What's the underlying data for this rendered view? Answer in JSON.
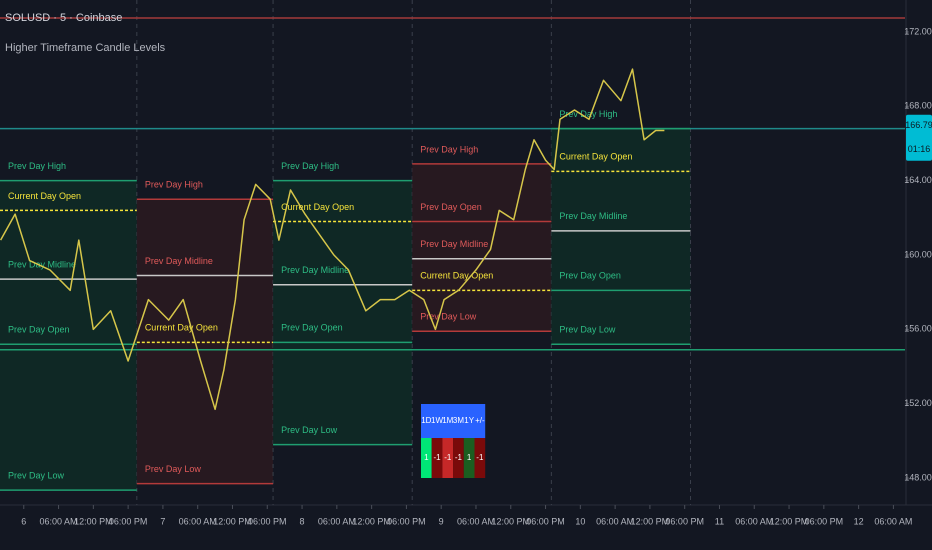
{
  "chart_data": {
    "type": "line",
    "title": "SOLUSD · 5 · Coinbase",
    "subtitle": "Higher Timeframe Candle Levels",
    "x": [
      -4,
      -1.5,
      1,
      4.5,
      8,
      9.5,
      12,
      15,
      18,
      21.5,
      25,
      27.5,
      30.5,
      33,
      34.5,
      36.5,
      38,
      40,
      42.5,
      44,
      46,
      48.5,
      51,
      53.5,
      56,
      59,
      61.5,
      64,
      66.5,
      69,
      71,
      72.5,
      75,
      78,
      80.5,
      82,
      84.5,
      86.5,
      88,
      90,
      91.5,
      92.5,
      95,
      97.5,
      100,
      103,
      105,
      107,
      109,
      110.5
    ],
    "series": [
      {
        "color": "#d6c64a",
        "values": [
          160.8,
          162.2,
          159.7,
          159.2,
          158.1,
          160.8,
          156,
          157,
          154.3,
          157.6,
          156.5,
          157.6,
          154.3,
          151.7,
          153.8,
          157.6,
          161.9,
          163.8,
          163,
          160.8,
          163.5,
          162.2,
          161.1,
          160,
          159.2,
          157,
          157.6,
          157.6,
          158.1,
          157.6,
          156,
          157.6,
          158.1,
          159.2,
          160.3,
          162.4,
          161.9,
          164.6,
          166.2,
          165.1,
          164.6,
          167.3,
          167.8,
          167.3,
          169.4,
          168.3,
          170,
          166.2,
          166.7,
          166.7
        ]
      }
    ],
    "xlim": [
      -4.1,
      152
    ],
    "xticks": [
      {
        "value": 0,
        "label": "6"
      },
      {
        "value": 6,
        "label": "06:00 AM"
      },
      {
        "value": 12,
        "label": "12:00 PM"
      },
      {
        "value": 18,
        "label": "06:00 PM"
      },
      {
        "value": 24,
        "label": "7"
      },
      {
        "value": 30,
        "label": "06:00 AM"
      },
      {
        "value": 36,
        "label": "12:00 PM"
      },
      {
        "value": 42,
        "label": "06:00 PM"
      },
      {
        "value": 48,
        "label": "8"
      },
      {
        "value": 54,
        "label": "06:00 AM"
      },
      {
        "value": 60,
        "label": "12:00 PM"
      },
      {
        "value": 66,
        "label": "06:00 PM"
      },
      {
        "value": 72,
        "label": "9"
      },
      {
        "value": 78,
        "label": "06:00 AM"
      },
      {
        "value": 84,
        "label": "12:00 PM"
      },
      {
        "value": 90,
        "label": "06:00 PM"
      },
      {
        "value": 96,
        "label": "10"
      },
      {
        "value": 102,
        "label": "06:00 AM"
      },
      {
        "value": 108,
        "label": "12:00 PM"
      },
      {
        "value": 114,
        "label": "06:00 PM"
      },
      {
        "value": 120,
        "label": "11"
      },
      {
        "value": 126,
        "label": "06:00 AM"
      },
      {
        "value": 132,
        "label": "12:00 PM"
      },
      {
        "value": 138,
        "label": "06:00 PM"
      },
      {
        "value": 144,
        "label": "12"
      },
      {
        "value": 150,
        "label": "06:00 AM"
      }
    ],
    "ylim": [
      146.55,
      173.72
    ],
    "yticks": [
      {
        "value": 148,
        "label": "148.00"
      },
      {
        "value": 152,
        "label": "152.00"
      },
      {
        "value": 156,
        "label": "156.00"
      },
      {
        "value": 160,
        "label": "160.00"
      },
      {
        "value": 164,
        "label": "164.00"
      },
      {
        "value": 168,
        "label": "168.00"
      },
      {
        "value": 172,
        "label": "172.00"
      }
    ],
    "segments": [
      {
        "x": [
          -4.1,
          19.5
        ],
        "fill": "#0f2a26",
        "accent": "#2ebd85",
        "levels": [
          {
            "label": "Prev Day High",
            "value": 164.0,
            "color": "#1f9e70"
          },
          {
            "label": "Current Day Open",
            "value": 162.4,
            "color": "#f5e33b",
            "dashed": true
          },
          {
            "label": "Prev Day Midline",
            "value": 158.7,
            "color": "#c8c8c8"
          },
          {
            "label": "Prev Day Open",
            "value": 155.2,
            "color": "#1f9e70"
          },
          {
            "label": "Prev Day Low",
            "value": 147.35,
            "color": "#1f9e70"
          }
        ]
      },
      {
        "x": [
          19.5,
          43
        ],
        "fill": "#2a1a20",
        "accent": "#e05a5a",
        "levels": [
          {
            "label": "Prev Day High",
            "value": 163.0,
            "color": "#b33a3a"
          },
          {
            "label": "Prev Day Midline",
            "value": 158.9,
            "color": "#c8c8c8"
          },
          {
            "label": "Current Day Open",
            "value": 155.3,
            "color": "#f5e33b",
            "dashed": true
          },
          {
            "label": "Prev Day Low",
            "value": 147.7,
            "color": "#b33a3a"
          }
        ]
      },
      {
        "x": [
          43,
          67
        ],
        "fill": "#0f2a26",
        "accent": "#2ebd85",
        "levels": [
          {
            "label": "Prev Day High",
            "value": 164.0,
            "color": "#1f9e70"
          },
          {
            "label": "Current Day Open",
            "value": 161.8,
            "color": "#f5e33b",
            "dashed": true
          },
          {
            "label": "Prev Day Midline",
            "value": 158.4,
            "color": "#c8c8c8"
          },
          {
            "label": "Prev Day Open",
            "value": 155.3,
            "color": "#1f9e70"
          },
          {
            "label": "Prev Day Low",
            "value": 149.8,
            "color": "#1f9e70"
          }
        ]
      },
      {
        "x": [
          67,
          91
        ],
        "fill": "#2a1a20",
        "accent": "#e05a5a",
        "levels": [
          {
            "label": "Prev Day High",
            "value": 164.9,
            "color": "#b33a3a"
          },
          {
            "label": "Prev Day Open",
            "value": 161.8,
            "color": "#b33a3a"
          },
          {
            "label": "Prev Day Midline",
            "value": 159.8,
            "color": "#c8c8c8"
          },
          {
            "label": "Current Day Open",
            "value": 158.1,
            "color": "#f5e33b",
            "dashed": true
          },
          {
            "label": "Prev Day Low",
            "value": 155.9,
            "color": "#b33a3a"
          }
        ]
      },
      {
        "x": [
          91,
          115
        ],
        "fill": "#0f2a26",
        "accent": "#2ebd85",
        "levels": [
          {
            "label": "Prev Day High",
            "value": 166.8,
            "color": "#1f9e70"
          },
          {
            "label": "Current Day Open",
            "value": 164.5,
            "color": "#f5e33b",
            "dashed": true
          },
          {
            "label": "Prev Day Midline",
            "value": 161.3,
            "color": "#c8c8c8"
          },
          {
            "label": "Prev Day Open",
            "value": 158.1,
            "color": "#1f9e70"
          },
          {
            "label": "Prev Day Low",
            "value": 155.2,
            "color": "#1f9e70"
          }
        ]
      }
    ],
    "full_levels": [
      {
        "value": 172.75,
        "color": "#a33a3a"
      },
      {
        "value": 166.8,
        "color": "#1f8a8a"
      },
      {
        "value": 154.9,
        "color": "#1f9e70"
      }
    ],
    "last_price": 166.79,
    "countdown": "01:16",
    "last_color": "#00bcd4"
  },
  "table": {
    "headers": [
      "1D",
      "1W",
      "1M",
      "3M",
      "1Y",
      "+/-"
    ],
    "cells": [
      1,
      -1,
      -1,
      -1,
      1,
      -1
    ],
    "colors": [
      "#00e676",
      "#7a0a0a",
      "#c62828",
      "#7a0a0a",
      "#1b5e20",
      "#7a0a0a"
    ],
    "header_color": "#2962ff"
  }
}
